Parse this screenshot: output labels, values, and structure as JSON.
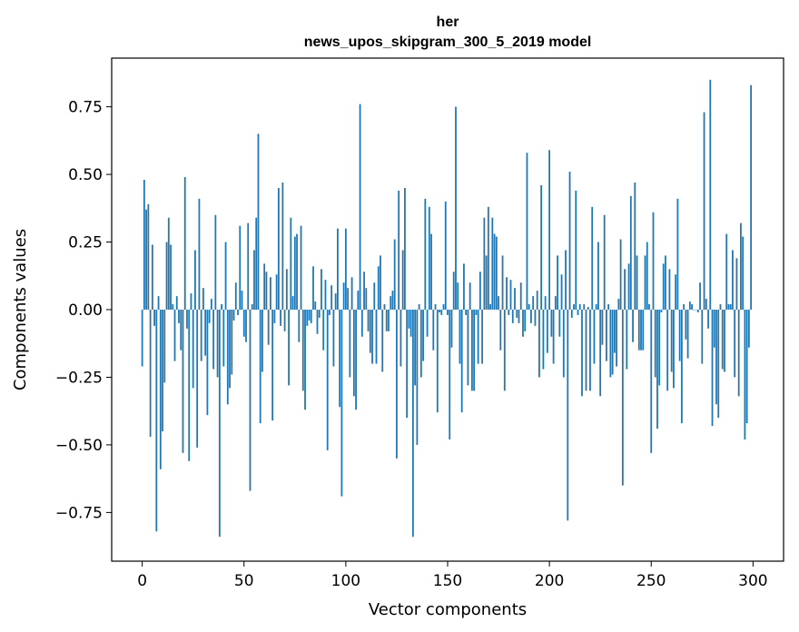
{
  "chart_data": {
    "type": "bar",
    "title_line1": "her",
    "title_line2": "news_upos_skipgram_300_5_2019 model",
    "xlabel": "Vector components",
    "ylabel": "Components values",
    "xlim": [
      -15,
      315
    ],
    "ylim": [
      -0.93,
      0.93
    ],
    "xticks": [
      0,
      50,
      100,
      150,
      200,
      250,
      300
    ],
    "xtick_labels": [
      "0",
      "50",
      "100",
      "150",
      "200",
      "250",
      "300"
    ],
    "yticks": [
      -0.75,
      -0.5,
      -0.25,
      0.0,
      0.25,
      0.5,
      0.75
    ],
    "ytick_labels": [
      "−0.75",
      "−0.50",
      "−0.25",
      "0.00",
      "0.25",
      "0.50",
      "0.75"
    ],
    "bar_color": "#1f77b4",
    "values": [
      -0.21,
      0.48,
      0.37,
      0.39,
      -0.47,
      0.24,
      -0.06,
      -0.82,
      0.05,
      -0.59,
      -0.45,
      -0.27,
      0.25,
      0.34,
      0.24,
      0.02,
      -0.19,
      0.05,
      -0.05,
      -0.15,
      -0.53,
      0.49,
      -0.07,
      -0.56,
      0.06,
      -0.29,
      0.22,
      -0.51,
      0.41,
      -0.19,
      0.08,
      -0.17,
      -0.39,
      -0.05,
      0.04,
      -0.22,
      0.35,
      -0.25,
      -0.84,
      0.02,
      -0.21,
      0.25,
      -0.35,
      -0.29,
      -0.24,
      -0.04,
      0.1,
      -0.02,
      0.31,
      0.07,
      -0.1,
      -0.12,
      0.32,
      -0.67,
      0.02,
      0.22,
      0.34,
      0.65,
      -0.42,
      -0.23,
      0.17,
      0.14,
      -0.13,
      0.12,
      -0.41,
      -0.05,
      0.13,
      0.45,
      -0.06,
      0.47,
      -0.08,
      0.15,
      -0.28,
      0.34,
      0.05,
      0.27,
      0.28,
      -0.12,
      0.31,
      -0.3,
      -0.37,
      -0.06,
      -0.04,
      -0.05,
      0.16,
      0.03,
      -0.09,
      -0.03,
      0.15,
      -0.15,
      0.11,
      -0.52,
      -0.02,
      0.09,
      -0.21,
      0.06,
      0.3,
      -0.36,
      -0.69,
      0.1,
      0.3,
      0.08,
      -0.25,
      0.12,
      -0.32,
      -0.37,
      0.07,
      0.76,
      -0.1,
      0.14,
      0.08,
      -0.08,
      -0.16,
      -0.2,
      0.1,
      -0.2,
      0.16,
      0.2,
      -0.23,
      0.02,
      -0.08,
      -0.08,
      0.05,
      0.07,
      0.26,
      -0.55,
      0.44,
      -0.21,
      0.22,
      0.45,
      -0.4,
      -0.07,
      -0.1,
      -0.84,
      -0.28,
      -0.5,
      0.02,
      -0.25,
      -0.19,
      0.41,
      -0.1,
      0.38,
      0.28,
      -0.15,
      0.02,
      -0.38,
      -0.01,
      -0.02,
      0.02,
      0.4,
      -0.02,
      -0.48,
      -0.14,
      0.14,
      0.75,
      0.1,
      -0.2,
      -0.38,
      0.17,
      -0.02,
      -0.28,
      0.1,
      -0.3,
      -0.3,
      -0.02,
      -0.2,
      0.14,
      -0.2,
      0.34,
      0.2,
      0.38,
      0.02,
      0.34,
      0.28,
      0.27,
      0.05,
      -0.15,
      0.2,
      -0.3,
      0.12,
      -0.02,
      0.11,
      -0.05,
      0.08,
      -0.03,
      -0.05,
      0.1,
      -0.1,
      -0.08,
      0.58,
      0.02,
      -0.05,
      0.05,
      -0.06,
      0.07,
      -0.25,
      0.46,
      -0.22,
      0.05,
      -0.16,
      0.59,
      -0.1,
      -0.2,
      0.05,
      0.2,
      -0.1,
      0.13,
      -0.25,
      0.22,
      -0.78,
      0.51,
      -0.03,
      0.02,
      0.44,
      -0.02,
      0.02,
      -0.32,
      0.02,
      -0.3,
      0.01,
      -0.3,
      0.38,
      -0.2,
      0.02,
      0.25,
      -0.32,
      -0.13,
      0.35,
      -0.19,
      0.02,
      -0.25,
      -0.24,
      -0.16,
      -0.21,
      0.04,
      0.26,
      -0.65,
      0.15,
      -0.22,
      0.17,
      0.42,
      -0.12,
      0.47,
      0.2,
      -0.15,
      -0.15,
      -0.15,
      0.2,
      0.25,
      0.02,
      -0.53,
      0.36,
      -0.25,
      -0.44,
      -0.28,
      -0.01,
      0.17,
      0.2,
      -0.3,
      0.15,
      -0.23,
      -0.29,
      0.13,
      0.41,
      -0.19,
      -0.42,
      0.02,
      -0.11,
      -0.18,
      0.03,
      0.02,
      0.0,
      0.0,
      -0.01,
      0.1,
      -0.2,
      0.73,
      0.04,
      -0.07,
      0.85,
      -0.43,
      -0.14,
      -0.35,
      -0.4,
      0.02,
      -0.22,
      -0.23,
      0.28,
      0.02,
      0.02,
      0.22,
      -0.25,
      0.19,
      -0.32,
      0.32,
      0.27,
      -0.48,
      -0.42,
      -0.14,
      0.83
    ]
  }
}
